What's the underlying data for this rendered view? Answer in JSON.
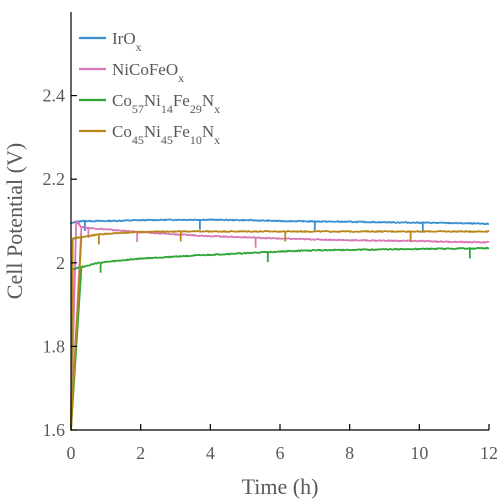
{
  "chart_data": {
    "type": "line",
    "xlabel": "Time (h)",
    "ylabel": "Cell Potential (V)",
    "xlim": [
      0,
      12
    ],
    "ylim": [
      1.6,
      2.6
    ],
    "xticks": [
      0,
      2,
      4,
      6,
      8,
      10,
      12
    ],
    "xtick_labels": [
      "0",
      "2",
      "4",
      "6",
      "8",
      "10",
      "12"
    ],
    "yticks": [
      1.6,
      1.8,
      2.0,
      2.2,
      2.4
    ],
    "ytick_labels": [
      "1.6",
      "1.8",
      "2",
      "2.2",
      "2.4"
    ],
    "grid": false,
    "legend_position": "top-left",
    "series": [
      {
        "name": "IrOx",
        "legend": {
          "base": "IrO",
          "parts": [
            {
              "t": "x",
              "sub": true
            }
          ]
        },
        "color": "#3a8fd1",
        "x": [
          0,
          0.3,
          1,
          2,
          3,
          3.7,
          4,
          5,
          6,
          7,
          8,
          9,
          10,
          11,
          12
        ],
        "y": [
          2.095,
          2.1,
          2.1,
          2.102,
          2.103,
          2.103,
          2.103,
          2.102,
          2.1,
          2.099,
          2.098,
          2.097,
          2.096,
          2.095,
          2.093
        ],
        "spikes_x": [
          0.4,
          3.7,
          7.0,
          10.1
        ],
        "spike_dir": -1
      },
      {
        "name": "NiCoFeOx",
        "legend": {
          "base": "NiCoFeO",
          "parts": [
            {
              "t": "x",
              "sub": true
            }
          ]
        },
        "color": "#d977b5",
        "x": [
          0,
          0.15,
          0.3,
          1,
          2,
          3,
          4,
          5,
          6,
          7,
          8,
          9,
          10,
          11,
          12
        ],
        "y": [
          1.6,
          2.1,
          2.085,
          2.08,
          2.073,
          2.068,
          2.064,
          2.061,
          2.058,
          2.056,
          2.054,
          2.053,
          2.052,
          2.05,
          2.049
        ],
        "spikes_x": [
          0.5,
          1.9,
          5.3
        ],
        "spike_dir": -1
      },
      {
        "name": "Co57Ni14Fe29Nx",
        "legend": {
          "base": "Co",
          "parts": [
            {
              "t": "57",
              "sub": true
            },
            {
              "t": "Ni"
            },
            {
              "t": "14",
              "sub": true
            },
            {
              "t": "Fe"
            },
            {
              "t": "29",
              "sub": true
            },
            {
              "t": "N"
            },
            {
              "t": "x",
              "sub": true
            }
          ]
        },
        "color": "#2ea535",
        "x": [
          0,
          0.05,
          0.3,
          0.8,
          1.5,
          2,
          3,
          4,
          5,
          6,
          7,
          8,
          9,
          10,
          11,
          12
        ],
        "y": [
          1.6,
          1.985,
          1.99,
          2.0,
          2.006,
          2.01,
          2.015,
          2.019,
          2.023,
          2.027,
          2.03,
          2.031,
          2.032,
          2.033,
          2.034,
          2.035
        ],
        "spikes_x": [
          0.85,
          5.65,
          11.45
        ],
        "spike_dir": -1
      },
      {
        "name": "Co45Ni45Fe10Nx",
        "legend": {
          "base": "Co",
          "parts": [
            {
              "t": "45",
              "sub": true
            },
            {
              "t": "Ni"
            },
            {
              "t": "45",
              "sub": true
            },
            {
              "t": "Fe"
            },
            {
              "t": "10",
              "sub": true
            },
            {
              "t": "N"
            },
            {
              "t": "x",
              "sub": true
            }
          ]
        },
        "color": "#b8861b",
        "x": [
          0,
          0.05,
          0.3,
          0.8,
          1.5,
          2,
          3,
          4,
          5,
          6,
          7,
          8,
          9,
          10,
          11,
          12
        ],
        "y": [
          1.6,
          2.058,
          2.062,
          2.068,
          2.072,
          2.074,
          2.075,
          2.075,
          2.075,
          2.075,
          2.075,
          2.075,
          2.075,
          2.075,
          2.075,
          2.075
        ],
        "spikes_x": [
          0.8,
          3.15,
          6.15,
          9.75
        ],
        "spike_dir": -1
      }
    ]
  }
}
